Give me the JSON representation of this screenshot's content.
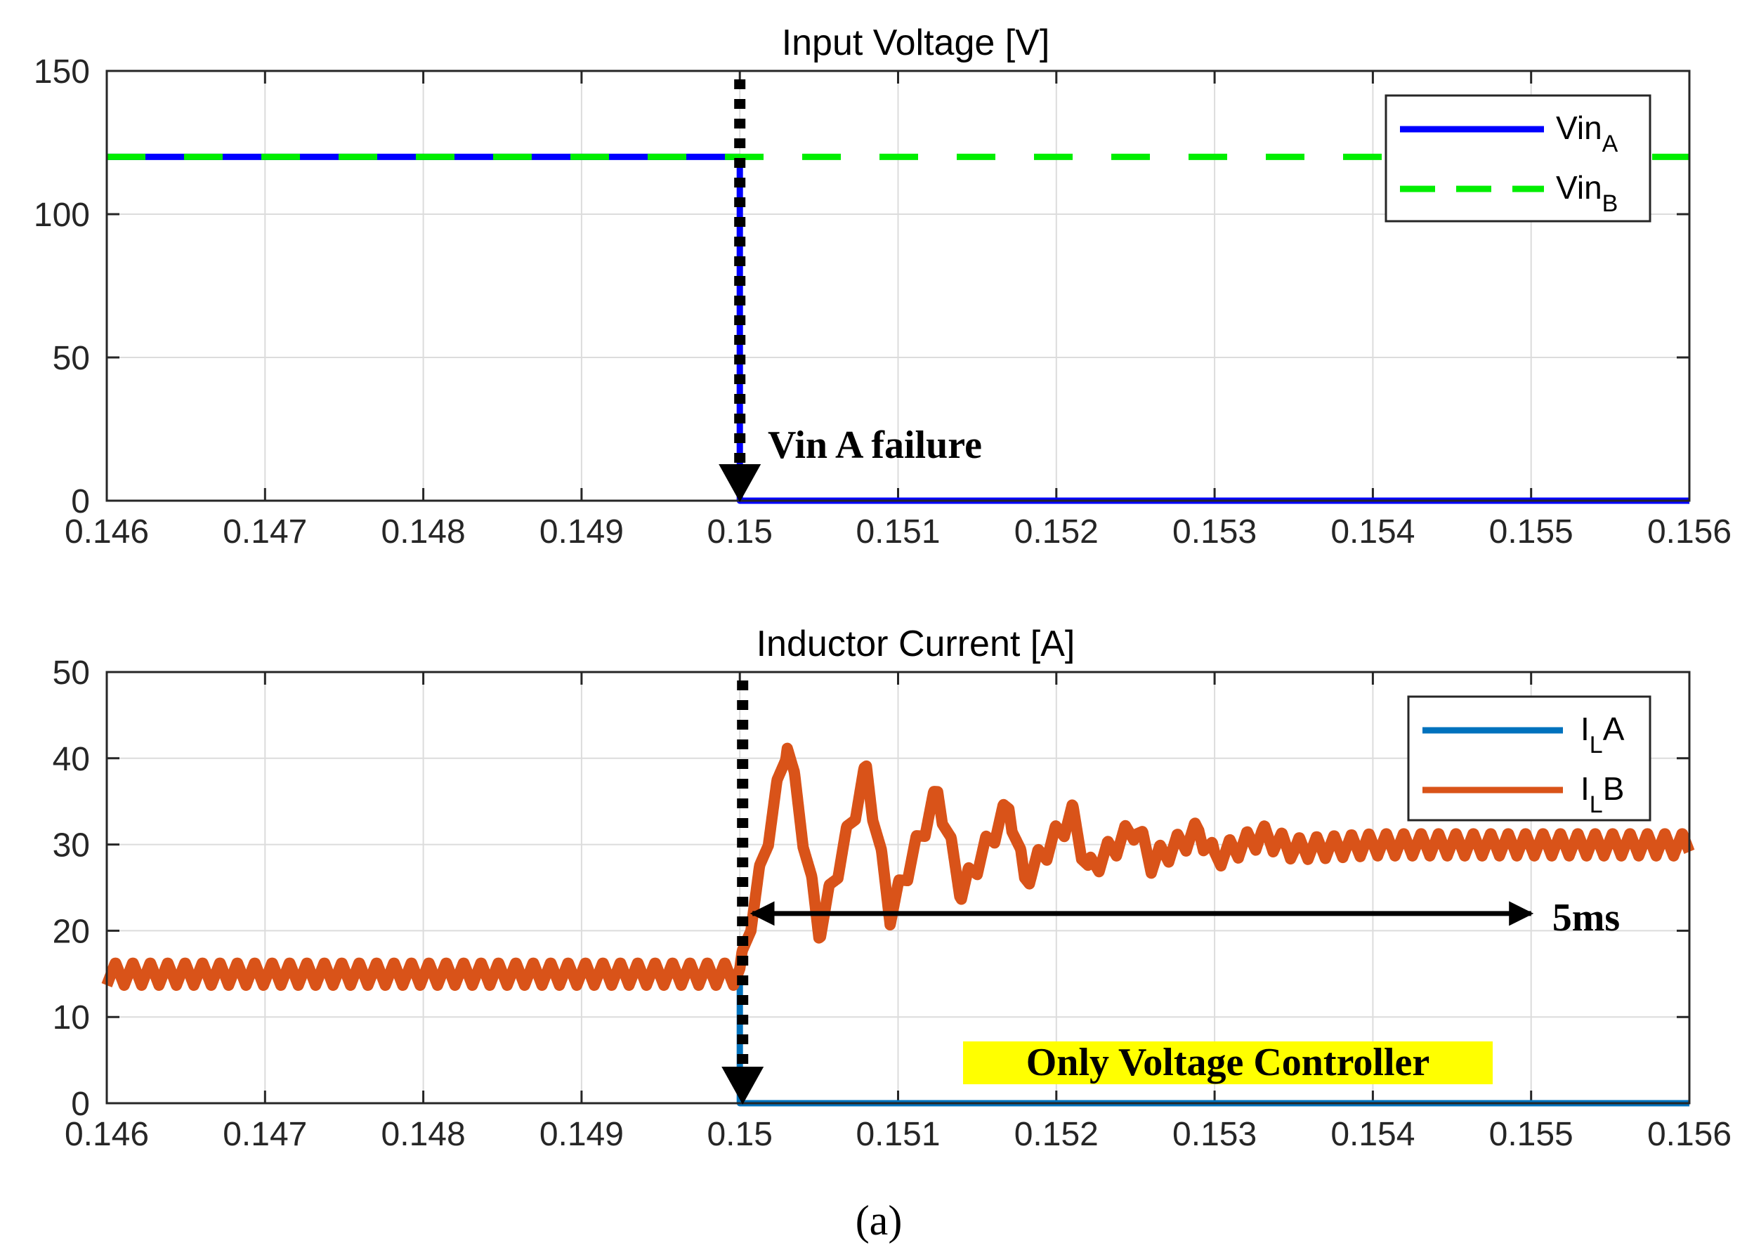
{
  "chart_data": [
    {
      "type": "line",
      "title": "Input Voltage [V]",
      "xlabel": "",
      "ylabel": "",
      "xlim": [
        0.146,
        0.156
      ],
      "ylim": [
        0,
        150
      ],
      "xticks": [
        "0.146",
        "0.147",
        "0.148",
        "0.149",
        "0.15",
        "0.151",
        "0.152",
        "0.153",
        "0.154",
        "0.155",
        "0.156"
      ],
      "yticks": [
        "0",
        "50",
        "100",
        "150"
      ],
      "grid": true,
      "legend_position": "top-right",
      "series": [
        {
          "name": "Vin",
          "sub": "A",
          "color": "#0000ff",
          "style": "solid",
          "x": [
            0.146,
            0.15,
            0.15,
            0.156
          ],
          "y": [
            120,
            120,
            0,
            0
          ]
        },
        {
          "name": "Vin",
          "sub": "B",
          "color": "#00ee00",
          "style": "dashed",
          "x": [
            0.146,
            0.156
          ],
          "y": [
            120,
            120
          ]
        }
      ],
      "annotations": [
        {
          "text": "Vin A failure",
          "x": 0.15,
          "y": 0,
          "arrow": "dotted-down"
        }
      ]
    },
    {
      "type": "line",
      "title": "Inductor Current [A]",
      "xlabel": "",
      "ylabel": "",
      "xlim": [
        0.146,
        0.156
      ],
      "ylim": [
        0,
        50
      ],
      "xticks": [
        "0.146",
        "0.147",
        "0.148",
        "0.149",
        "0.15",
        "0.151",
        "0.152",
        "0.153",
        "0.154",
        "0.155",
        "0.156"
      ],
      "yticks": [
        "0",
        "10",
        "20",
        "30",
        "40",
        "50"
      ],
      "grid": true,
      "legend_position": "top-right",
      "series": [
        {
          "name": "I",
          "sub": "L",
          "suffix": "A",
          "color": "#0072bd",
          "x": [
            0.146,
            0.15,
            0.15,
            0.156
          ],
          "y": [
            15,
            15,
            0,
            0
          ]
        },
        {
          "name": "I",
          "sub": "L",
          "suffix": "B",
          "color": "#d95319",
          "x": [
            0.146,
            0.15,
            0.1503,
            0.1505,
            0.1508,
            0.15095,
            0.15125,
            0.1514,
            0.1517,
            0.1518,
            0.1521,
            0.1522,
            0.1525,
            0.1526,
            0.1529,
            0.153,
            0.1533,
            0.1535,
            0.154,
            0.155,
            0.156
          ],
          "y": [
            15,
            15,
            42,
            20,
            38.5,
            22,
            36,
            24.5,
            34.5,
            26,
            33.5,
            27,
            32,
            28,
            31.5,
            28.5,
            31,
            29.5,
            30,
            30,
            30
          ],
          "ripple_amplitude": 2.2,
          "ripple_period": 0.00011
        }
      ],
      "annotations": [
        {
          "text": "5ms",
          "x_start": 0.15,
          "x_end": 0.155,
          "y": 22,
          "arrow": "double"
        },
        {
          "text": "Only Voltage Controller",
          "highlight": "#ffff00"
        }
      ]
    }
  ],
  "caption": "(a)"
}
